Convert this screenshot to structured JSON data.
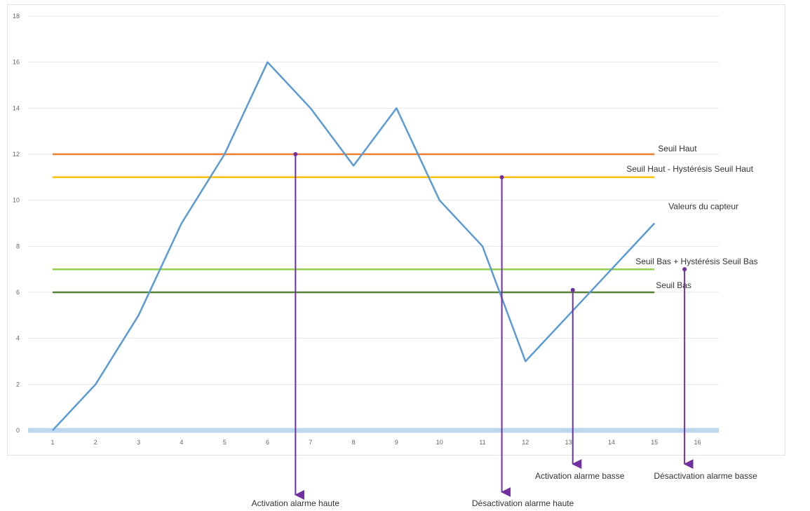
{
  "chart_data": {
    "type": "line",
    "title": "",
    "xlabel": "",
    "ylabel": "",
    "x_ticks": [
      "1",
      "2",
      "3",
      "4",
      "5",
      "6",
      "7",
      "8",
      "9",
      "10",
      "11",
      "12",
      "13",
      "14",
      "15",
      "16"
    ],
    "y_ticks": [
      "0",
      "2",
      "4",
      "6",
      "8",
      "10",
      "12",
      "14",
      "16",
      "18"
    ],
    "ylim": [
      0,
      18
    ],
    "grid": true,
    "series": [
      {
        "name": "Valeurs du capteur",
        "color": "#5b9bd5",
        "x": [
          1,
          2,
          3,
          4,
          5,
          6,
          7,
          8,
          9,
          10,
          11,
          12,
          13,
          14,
          15
        ],
        "values": [
          0,
          2,
          5,
          9,
          12,
          16,
          14,
          11.5,
          14,
          10,
          8,
          3,
          5,
          7,
          9
        ]
      },
      {
        "name": "Seuil Haut",
        "color": "#ed7d31",
        "x": [
          1,
          15
        ],
        "values": [
          12,
          12
        ]
      },
      {
        "name": "Seuil Haut - Hystérésis Seuil Haut",
        "color": "#ffc000",
        "x": [
          1,
          15
        ],
        "values": [
          11,
          11
        ]
      },
      {
        "name": "Seuil Bas + Hystérésis Seuil Bas",
        "color": "#92d050",
        "x": [
          1,
          15
        ],
        "values": [
          7,
          7
        ]
      },
      {
        "name": "Seuil Bas",
        "color": "#548235",
        "x": [
          1,
          15
        ],
        "values": [
          6,
          6
        ]
      }
    ],
    "annotations": [
      {
        "text": "Activation alarme haute",
        "x": 6.65,
        "y": 12
      },
      {
        "text": "Désactivation alarme haute",
        "x": 11.45,
        "y": 11
      },
      {
        "text": "Activation alarme basse",
        "x": 13.1,
        "y": 6.1
      },
      {
        "text": "Désactivation alarme basse",
        "x": 15.7,
        "y": 7
      }
    ],
    "annotation_color": "#7030a0",
    "axis_band_color": "#bdd7ee"
  }
}
